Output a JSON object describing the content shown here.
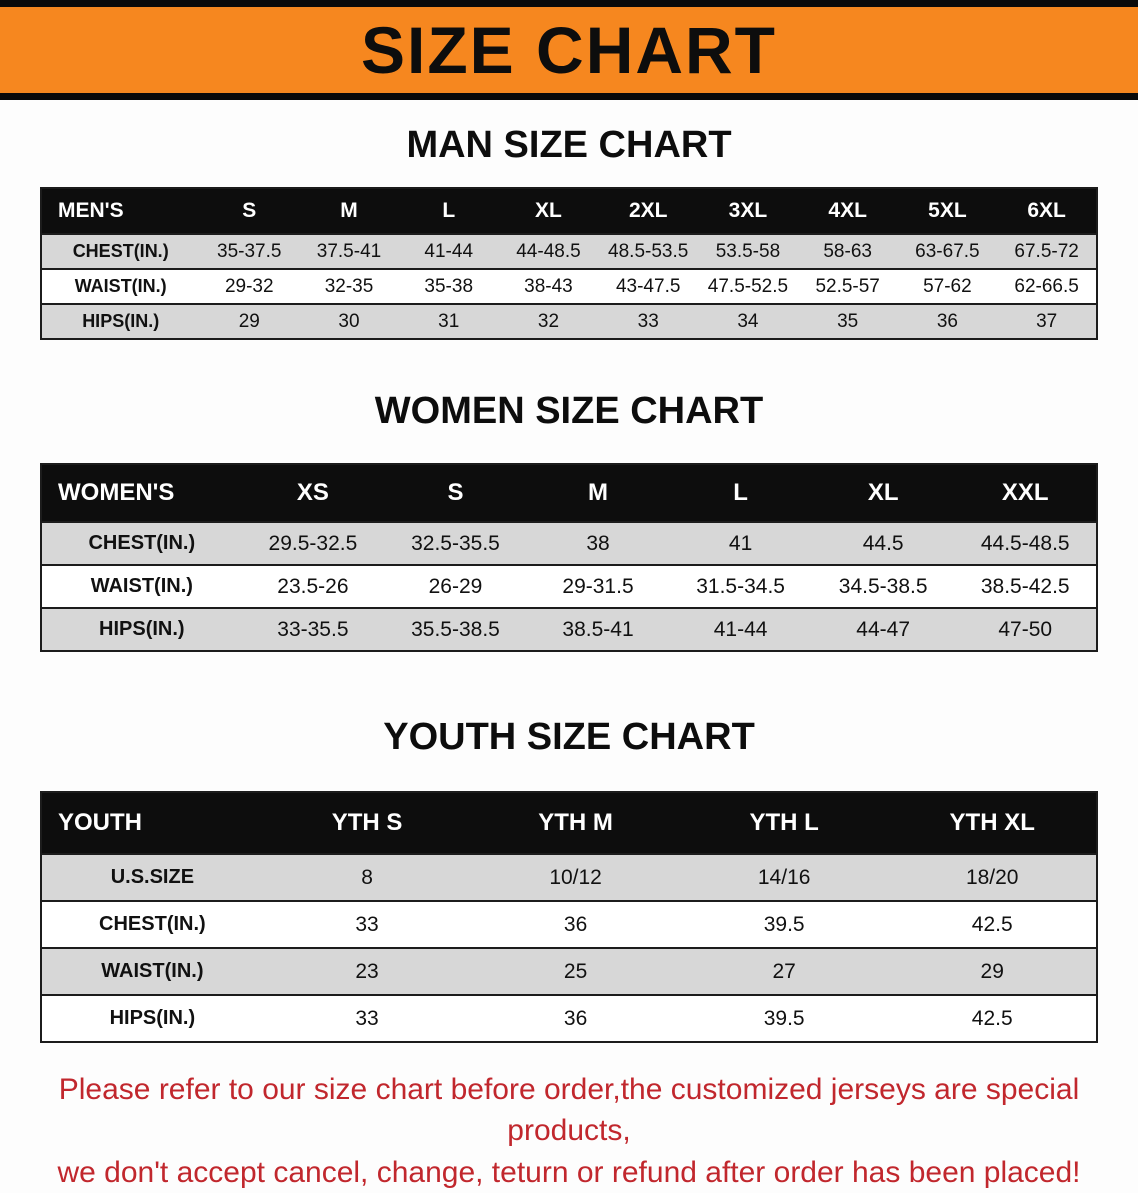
{
  "banner": {
    "title": "SIZE CHART"
  },
  "headings": {
    "men": "MAN SIZE CHART",
    "women": "WOMEN SIZE CHART",
    "youth": "YOUTH SIZE CHART"
  },
  "men": {
    "label": "MEN'S",
    "columns": [
      "S",
      "M",
      "L",
      "XL",
      "2XL",
      "3XL",
      "4XL",
      "5XL",
      "6XL"
    ],
    "rows": [
      {
        "label": "CHEST(IN.)",
        "values": [
          "35-37.5",
          "37.5-41",
          "41-44",
          "44-48.5",
          "48.5-53.5",
          "53.5-58",
          "58-63",
          "63-67.5",
          "67.5-72"
        ]
      },
      {
        "label": "WAIST(IN.)",
        "values": [
          "29-32",
          "32-35",
          "35-38",
          "38-43",
          "43-47.5",
          "47.5-52.5",
          "52.5-57",
          "57-62",
          "62-66.5"
        ]
      },
      {
        "label": "HIPS(IN.)",
        "values": [
          "29",
          "30",
          "31",
          "32",
          "33",
          "34",
          "35",
          "36",
          "37"
        ]
      }
    ]
  },
  "women": {
    "label": "WOMEN'S",
    "columns": [
      "XS",
      "S",
      "M",
      "L",
      "XL",
      "XXL"
    ],
    "rows": [
      {
        "label": "CHEST(IN.)",
        "values": [
          "29.5-32.5",
          "32.5-35.5",
          "38",
          "41",
          "44.5",
          "44.5-48.5"
        ]
      },
      {
        "label": "WAIST(IN.)",
        "values": [
          "23.5-26",
          "26-29",
          "29-31.5",
          "31.5-34.5",
          "34.5-38.5",
          "38.5-42.5"
        ]
      },
      {
        "label": "HIPS(IN.)",
        "values": [
          "33-35.5",
          "35.5-38.5",
          "38.5-41",
          "41-44",
          "44-47",
          "47-50"
        ]
      }
    ]
  },
  "youth": {
    "label": "YOUTH",
    "columns": [
      "YTH S",
      "YTH M",
      "YTH L",
      "YTH XL"
    ],
    "rows": [
      {
        "label": "U.S.SIZE",
        "values": [
          "8",
          "10/12",
          "14/16",
          "18/20"
        ]
      },
      {
        "label": "CHEST(IN.)",
        "values": [
          "33",
          "36",
          "39.5",
          "42.5"
        ]
      },
      {
        "label": "WAIST(IN.)",
        "values": [
          "23",
          "25",
          "27",
          "29"
        ]
      },
      {
        "label": "HIPS(IN.)",
        "values": [
          "33",
          "36",
          "39.5",
          "42.5"
        ]
      }
    ]
  },
  "footer": {
    "line1": "Please refer to our size chart before order,the customized jerseys are special products,",
    "line2": "we don't accept cancel, change, teturn or refund after order has been placed!"
  },
  "colors": {
    "banner_orange": "#f6871f",
    "header_black": "#0d0d0d",
    "row_gray": "#d7d7d7",
    "footer_red": "#c1272d"
  }
}
